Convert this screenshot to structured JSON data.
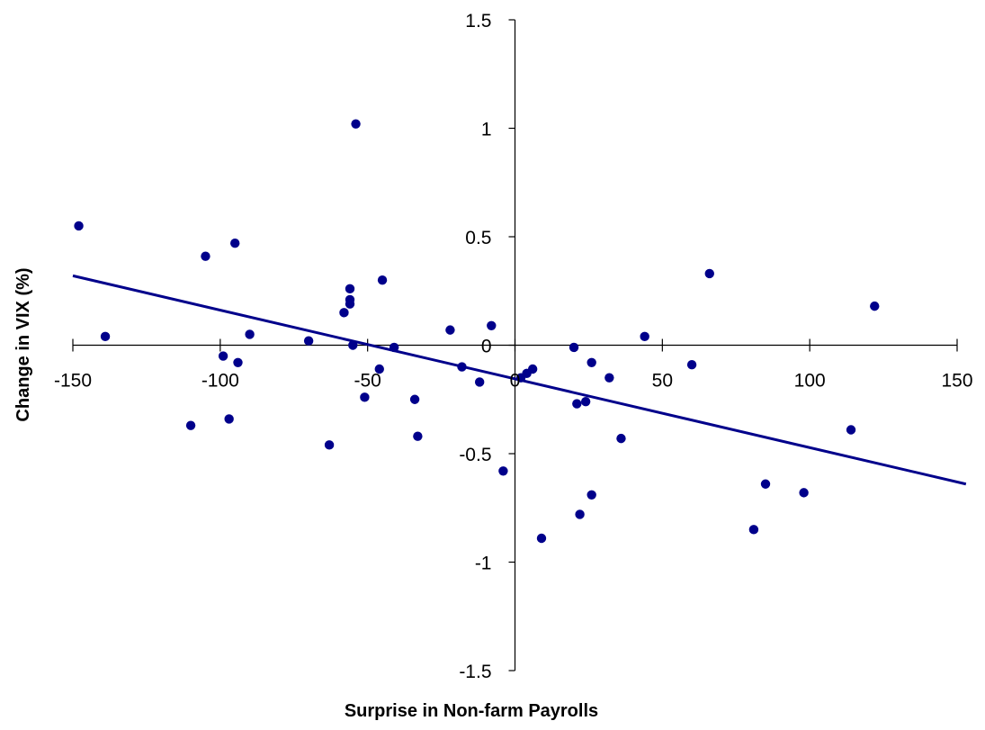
{
  "chart_data": {
    "type": "scatter",
    "title": "",
    "xlabel": "Surprise in Non-farm Payrolls",
    "ylabel": "Change in VIX (%)",
    "xlim": [
      -150,
      150
    ],
    "ylim": [
      -1.5,
      1.5
    ],
    "xticks": [
      "-150",
      "-100",
      "-50",
      "0",
      "50",
      "100",
      "150"
    ],
    "yticks": [
      "1.5",
      "1",
      "0.5",
      "0",
      "-0.5",
      "-1",
      "-1.5"
    ],
    "xtick_values": [
      -150,
      -100,
      -50,
      0,
      50,
      100,
      150
    ],
    "ytick_values": [
      1.5,
      1,
      0.5,
      0,
      -0.5,
      -1,
      -1.5
    ],
    "grid": false,
    "legend": "none",
    "marker_color": "#00008B",
    "trendline_color": "#00008B",
    "series": [
      {
        "points": [
          [
            -148,
            0.55
          ],
          [
            -139,
            0.04
          ],
          [
            -110,
            -0.37
          ],
          [
            -105,
            0.41
          ],
          [
            -99,
            -0.05
          ],
          [
            -97,
            -0.34
          ],
          [
            -95,
            0.47
          ],
          [
            -94,
            -0.08
          ],
          [
            -90,
            0.05
          ],
          [
            -70,
            0.02
          ],
          [
            -63,
            -0.46
          ],
          [
            -58,
            0.15
          ],
          [
            -56,
            0.26
          ],
          [
            -56,
            0.21
          ],
          [
            -56,
            0.19
          ],
          [
            -55,
            0.0
          ],
          [
            -54,
            1.02
          ],
          [
            -51,
            -0.24
          ],
          [
            -46,
            -0.11
          ],
          [
            -45,
            0.3
          ],
          [
            -41,
            -0.01
          ],
          [
            -34,
            -0.25
          ],
          [
            -33,
            -0.42
          ],
          [
            -22,
            0.07
          ],
          [
            -18,
            -0.1
          ],
          [
            -12,
            -0.17
          ],
          [
            -8,
            0.09
          ],
          [
            -4,
            -0.58
          ],
          [
            2,
            -0.15
          ],
          [
            4,
            -0.13
          ],
          [
            6,
            -0.11
          ],
          [
            9,
            -0.89
          ],
          [
            20,
            -0.01
          ],
          [
            21,
            -0.27
          ],
          [
            22,
            -0.78
          ],
          [
            24,
            -0.26
          ],
          [
            26,
            -0.08
          ],
          [
            26,
            -0.69
          ],
          [
            32,
            -0.15
          ],
          [
            36,
            -0.43
          ],
          [
            44,
            0.04
          ],
          [
            60,
            -0.09
          ],
          [
            66,
            0.33
          ],
          [
            81,
            -0.85
          ],
          [
            85,
            -0.64
          ],
          [
            98,
            -0.68
          ],
          [
            114,
            -0.39
          ],
          [
            122,
            0.18
          ]
        ]
      }
    ],
    "trendline": {
      "x": [
        -150,
        153
      ],
      "y": [
        0.32,
        -0.64
      ]
    }
  }
}
